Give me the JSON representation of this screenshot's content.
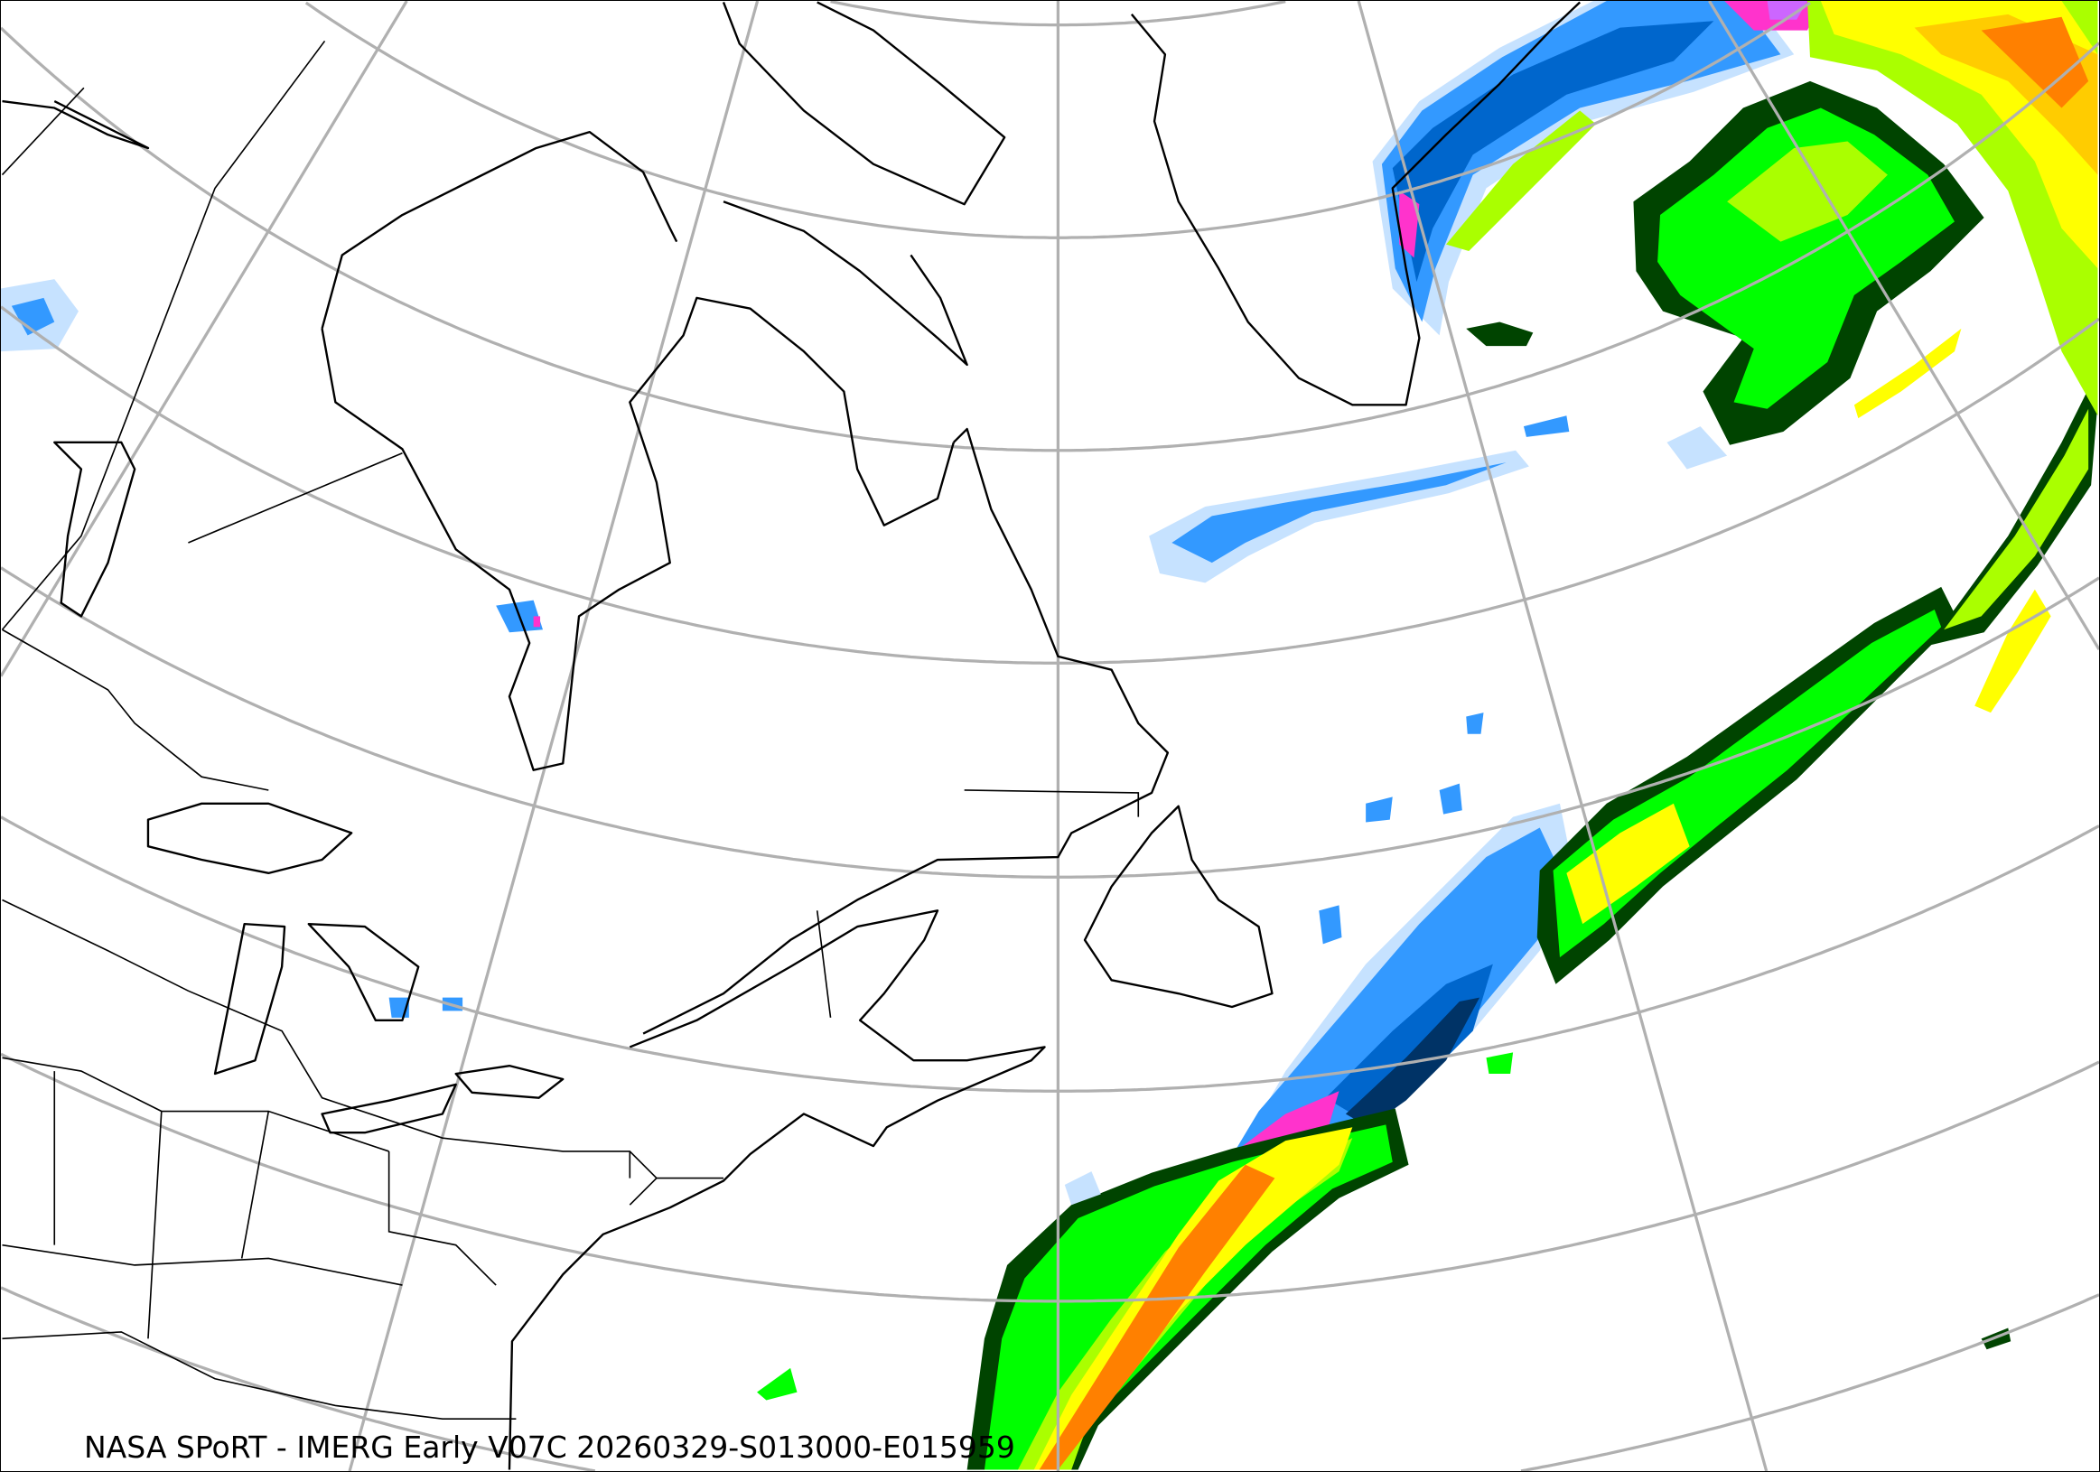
{
  "map": {
    "caption": "NASA SPoRT - IMERG Early V07C 20260329-S013000-E015959",
    "projection": "lambert-conformal",
    "gridlines": true,
    "gridline_color": "#b0b0b0",
    "coastline_color": "#000000",
    "precip_colors": {
      "very-light-blue": "#c6e2ff",
      "light-blue": "#99ccff",
      "blue": "#3399ff",
      "medium-blue": "#0066cc",
      "dark-blue": "#003366",
      "pink": "#ff66cc",
      "magenta": "#ff33cc",
      "violet": "#cc66ff",
      "dark-green": "#004400",
      "green": "#008800",
      "bright-green": "#00ff00",
      "yellow-green": "#aaff00",
      "yellow": "#ffff00",
      "gold": "#ffcc00",
      "orange": "#ff8000"
    }
  }
}
